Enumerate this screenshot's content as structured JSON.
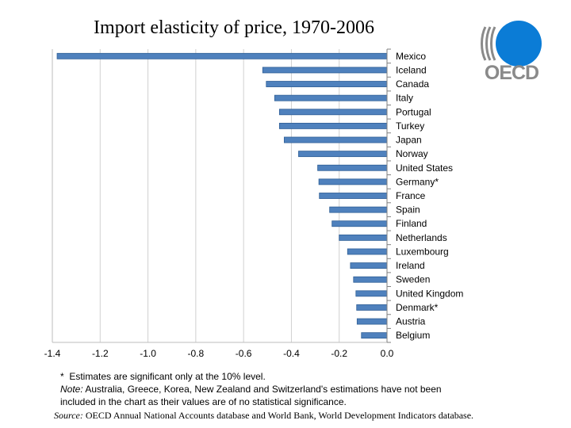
{
  "chart_data": {
    "type": "bar",
    "orientation": "horizontal",
    "title": "Import elasticity of price, 1970-2006",
    "xlabel": "",
    "ylabel": "",
    "xlim": [
      -1.4,
      0.0
    ],
    "x_ticks": [
      "-1.4",
      "-1.2",
      "-1.0",
      "-0.8",
      "-0.6",
      "-0.4",
      "-0.2",
      "0.0"
    ],
    "x_tick_values": [
      -1.4,
      -1.2,
      -1.0,
      -0.8,
      -0.6,
      -0.4,
      -0.2,
      0.0
    ],
    "grid": true,
    "bar_color": "#4f81bd",
    "categories": [
      "Mexico",
      "Iceland",
      "Canada",
      "Italy",
      "Portugal",
      "Turkey",
      "Japan",
      "Norway",
      "United States",
      "Germany*",
      "France",
      "Spain",
      "Finland",
      "Netherlands",
      "Luxembourg",
      "Ireland",
      "Sweden",
      "United Kingdom",
      "Denmark*",
      "Austria",
      "Belgium"
    ],
    "values": [
      -1.38,
      -0.52,
      -0.505,
      -0.47,
      -0.45,
      -0.45,
      -0.43,
      -0.37,
      -0.29,
      -0.285,
      -0.283,
      -0.24,
      -0.23,
      -0.2,
      -0.165,
      -0.153,
      -0.14,
      -0.13,
      -0.127,
      -0.125,
      -0.107
    ]
  },
  "logo": {
    "text": "OECD"
  },
  "notes": {
    "line1": "*  Estimates are significant only at the 10% level.",
    "note_label": "Note:",
    "note_text": "  Australia, Greece, Korea, New Zealand and Switzerland's estimations have not been included in the chart as their values are of no statistical significance."
  },
  "source": {
    "label": "Source:",
    "text": " OECD Annual National Accounts database and World Bank, World Development Indicators database."
  }
}
